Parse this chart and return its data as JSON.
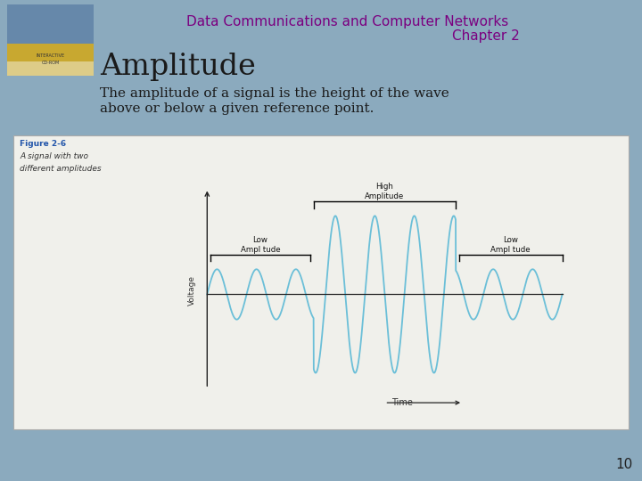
{
  "bg_color": "#8baabe",
  "title_line1": "Data Communications and Computer Networks",
  "title_line2": "Chapter 2",
  "title_color": "#7b0080",
  "heading": "Amplitude",
  "heading_color": "#1a1a1a",
  "body_text_line1": "The amplitude of a signal is the height of the wave",
  "body_text_line2": "above or below a given reference point.",
  "body_color": "#1a1a1a",
  "figure_label": "Figure 2-6",
  "figure_caption_line1": "A signal with two",
  "figure_caption_line2": "different amplitudes",
  "wave_color": "#6bbfd8",
  "axis_color": "#222222",
  "panel_bg": "#f0f0eb",
  "page_number": "10",
  "low_amp1_label": "Low\nAmpl tude",
  "high_amp_label": "High\nAmplitude",
  "low_amp2_label": "Low\nAmpl tude",
  "voltage_label": "Voltage",
  "time_label": "Time"
}
